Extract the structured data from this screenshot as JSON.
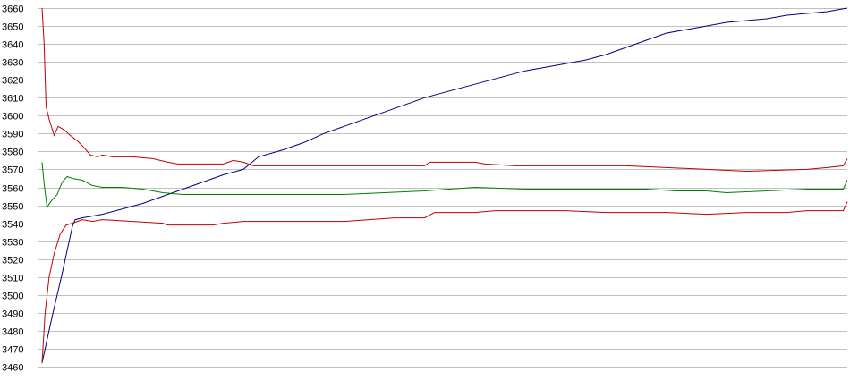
{
  "chart_data": {
    "type": "line",
    "title": "",
    "xlabel": "",
    "ylabel": "",
    "ylim": [
      3460,
      3660
    ],
    "y_ticks": [
      3660,
      3650,
      3640,
      3630,
      3620,
      3610,
      3600,
      3590,
      3580,
      3570,
      3560,
      3550,
      3540,
      3530,
      3520,
      3510,
      3500,
      3490,
      3480,
      3470,
      3460
    ],
    "grid": true,
    "legend": "none",
    "series": [
      {
        "color": "#000080",
        "points": [
          [
            0,
            3462
          ],
          [
            5,
            3475
          ],
          [
            10,
            3488
          ],
          [
            20,
            3512
          ],
          [
            30,
            3538
          ],
          [
            33,
            3542
          ],
          [
            40,
            3543
          ],
          [
            60,
            3545
          ],
          [
            80,
            3548
          ],
          [
            100,
            3551
          ],
          [
            120,
            3555
          ],
          [
            140,
            3559
          ],
          [
            160,
            3563
          ],
          [
            180,
            3567
          ],
          [
            200,
            3570
          ],
          [
            215,
            3577
          ],
          [
            240,
            3581
          ],
          [
            260,
            3585
          ],
          [
            280,
            3590
          ],
          [
            300,
            3594
          ],
          [
            320,
            3598
          ],
          [
            340,
            3602
          ],
          [
            360,
            3606
          ],
          [
            380,
            3610
          ],
          [
            400,
            3613
          ],
          [
            420,
            3616
          ],
          [
            440,
            3619
          ],
          [
            460,
            3622
          ],
          [
            480,
            3625
          ],
          [
            500,
            3627
          ],
          [
            520,
            3629
          ],
          [
            540,
            3631
          ],
          [
            560,
            3634
          ],
          [
            580,
            3638
          ],
          [
            600,
            3642
          ],
          [
            620,
            3646
          ],
          [
            640,
            3648
          ],
          [
            660,
            3650
          ],
          [
            680,
            3652
          ],
          [
            700,
            3653
          ],
          [
            720,
            3654
          ],
          [
            740,
            3656
          ],
          [
            760,
            3657
          ],
          [
            780,
            3658
          ],
          [
            800,
            3660
          ]
        ]
      },
      {
        "color": "#c00000",
        "points": [
          [
            0,
            3660
          ],
          [
            2,
            3640
          ],
          [
            4,
            3605
          ],
          [
            7,
            3598
          ],
          [
            12,
            3589
          ],
          [
            16,
            3594
          ],
          [
            22,
            3592
          ],
          [
            28,
            3589
          ],
          [
            35,
            3586
          ],
          [
            42,
            3582
          ],
          [
            48,
            3578
          ],
          [
            55,
            3577
          ],
          [
            60,
            3578
          ],
          [
            70,
            3577
          ],
          [
            90,
            3577
          ],
          [
            110,
            3576
          ],
          [
            125,
            3574
          ],
          [
            135,
            3573
          ],
          [
            160,
            3573
          ],
          [
            180,
            3573
          ],
          [
            190,
            3575
          ],
          [
            200,
            3574
          ],
          [
            210,
            3572
          ],
          [
            220,
            3572
          ],
          [
            250,
            3572
          ],
          [
            300,
            3572
          ],
          [
            350,
            3572
          ],
          [
            380,
            3572
          ],
          [
            385,
            3574
          ],
          [
            430,
            3574
          ],
          [
            440,
            3573
          ],
          [
            470,
            3572
          ],
          [
            540,
            3572
          ],
          [
            580,
            3572
          ],
          [
            620,
            3571
          ],
          [
            660,
            3570
          ],
          [
            700,
            3569
          ],
          [
            760,
            3570
          ],
          [
            780,
            3571
          ],
          [
            796,
            3572
          ],
          [
            800,
            3576
          ]
        ]
      },
      {
        "color": "#c00000",
        "points": [
          [
            0,
            3462
          ],
          [
            3,
            3490
          ],
          [
            7,
            3510
          ],
          [
            12,
            3523
          ],
          [
            18,
            3534
          ],
          [
            24,
            3539
          ],
          [
            30,
            3540
          ],
          [
            40,
            3542
          ],
          [
            50,
            3541
          ],
          [
            60,
            3542
          ],
          [
            90,
            3541
          ],
          [
            120,
            3540
          ],
          [
            125,
            3539
          ],
          [
            170,
            3539
          ],
          [
            180,
            3540
          ],
          [
            200,
            3541
          ],
          [
            260,
            3541
          ],
          [
            300,
            3541
          ],
          [
            350,
            3543
          ],
          [
            380,
            3543
          ],
          [
            390,
            3546
          ],
          [
            430,
            3546
          ],
          [
            450,
            3547
          ],
          [
            520,
            3547
          ],
          [
            560,
            3546
          ],
          [
            620,
            3546
          ],
          [
            660,
            3545
          ],
          [
            700,
            3546
          ],
          [
            740,
            3546
          ],
          [
            760,
            3547
          ],
          [
            796,
            3547
          ],
          [
            800,
            3552
          ]
        ]
      },
      {
        "color": "#008000",
        "points": [
          [
            0,
            3574
          ],
          [
            2,
            3562
          ],
          [
            5,
            3549
          ],
          [
            10,
            3553
          ],
          [
            15,
            3556
          ],
          [
            20,
            3563
          ],
          [
            25,
            3566
          ],
          [
            30,
            3565
          ],
          [
            40,
            3564
          ],
          [
            50,
            3561
          ],
          [
            60,
            3560
          ],
          [
            80,
            3560
          ],
          [
            100,
            3559
          ],
          [
            120,
            3557
          ],
          [
            140,
            3556
          ],
          [
            180,
            3556
          ],
          [
            210,
            3556
          ],
          [
            240,
            3556
          ],
          [
            260,
            3556
          ],
          [
            300,
            3556
          ],
          [
            340,
            3557
          ],
          [
            380,
            3558
          ],
          [
            430,
            3560
          ],
          [
            480,
            3559
          ],
          [
            560,
            3559
          ],
          [
            600,
            3559
          ],
          [
            630,
            3558
          ],
          [
            660,
            3558
          ],
          [
            680,
            3557
          ],
          [
            720,
            3558
          ],
          [
            760,
            3559
          ],
          [
            796,
            3559
          ],
          [
            800,
            3564
          ]
        ]
      }
    ]
  }
}
